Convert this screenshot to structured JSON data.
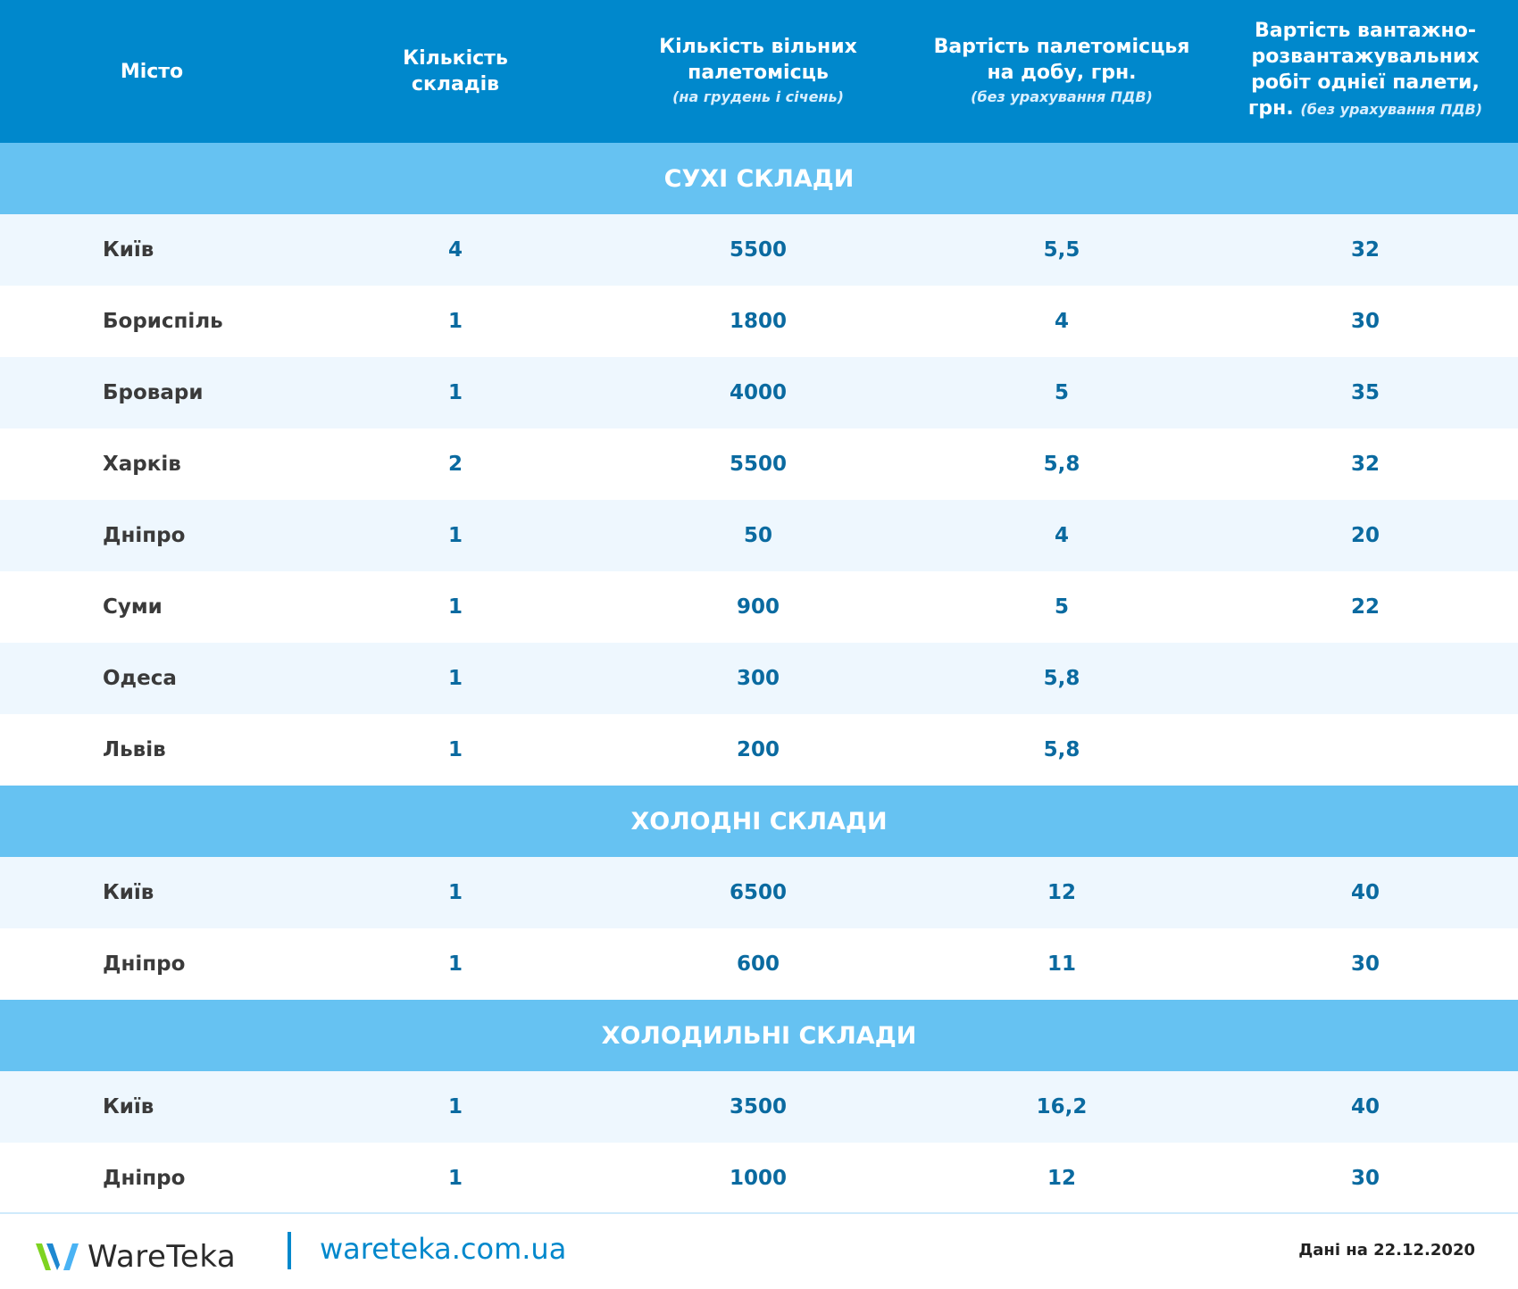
{
  "header": {
    "columns": [
      {
        "title": "Місто",
        "sub": ""
      },
      {
        "title": "Кількість складів",
        "sub": ""
      },
      {
        "title": "Кількість вільних палетомісць",
        "sub": "(на грудень і січень)"
      },
      {
        "title": "Вартість палетомісцья на добу, грн.",
        "sub": "(без урахування ПДВ)"
      },
      {
        "title": "Вартість вантажно-розвантажувальних робіт однієї палети, грн.",
        "sub": "(без урахування ПДВ)"
      }
    ]
  },
  "sections": [
    {
      "title": "СУХІ СКЛАДИ",
      "rows": [
        [
          "Київ",
          "4",
          "5500",
          "5,5",
          "32"
        ],
        [
          "Бориспіль",
          "1",
          "1800",
          "4",
          "30"
        ],
        [
          "Бровари",
          "1",
          "4000",
          "5",
          "35"
        ],
        [
          "Харків",
          "2",
          "5500",
          "5,8",
          "32"
        ],
        [
          "Дніпро",
          "1",
          "50",
          "4",
          "20"
        ],
        [
          "Суми",
          "1",
          "900",
          "5",
          "22"
        ],
        [
          "Одеса",
          "1",
          "300",
          "5,8",
          ""
        ],
        [
          "Львів",
          "1",
          "200",
          "5,8",
          ""
        ]
      ]
    },
    {
      "title": "ХОЛОДНІ СКЛАДИ",
      "rows": [
        [
          "Київ",
          "1",
          "6500",
          "12",
          "40"
        ],
        [
          "Дніпро",
          "1",
          "600",
          "11",
          "30"
        ]
      ]
    },
    {
      "title": "ХОЛОДИЛЬНІ СКЛАДИ",
      "rows": [
        [
          "Київ",
          "1",
          "3500",
          "16,2",
          "40"
        ],
        [
          "Дніпро",
          "1",
          "1000",
          "12",
          "30"
        ]
      ]
    }
  ],
  "footer": {
    "brand": "WareTeka",
    "site": "wareteka.com.ua",
    "date": "Дані на 22.12.2020"
  }
}
